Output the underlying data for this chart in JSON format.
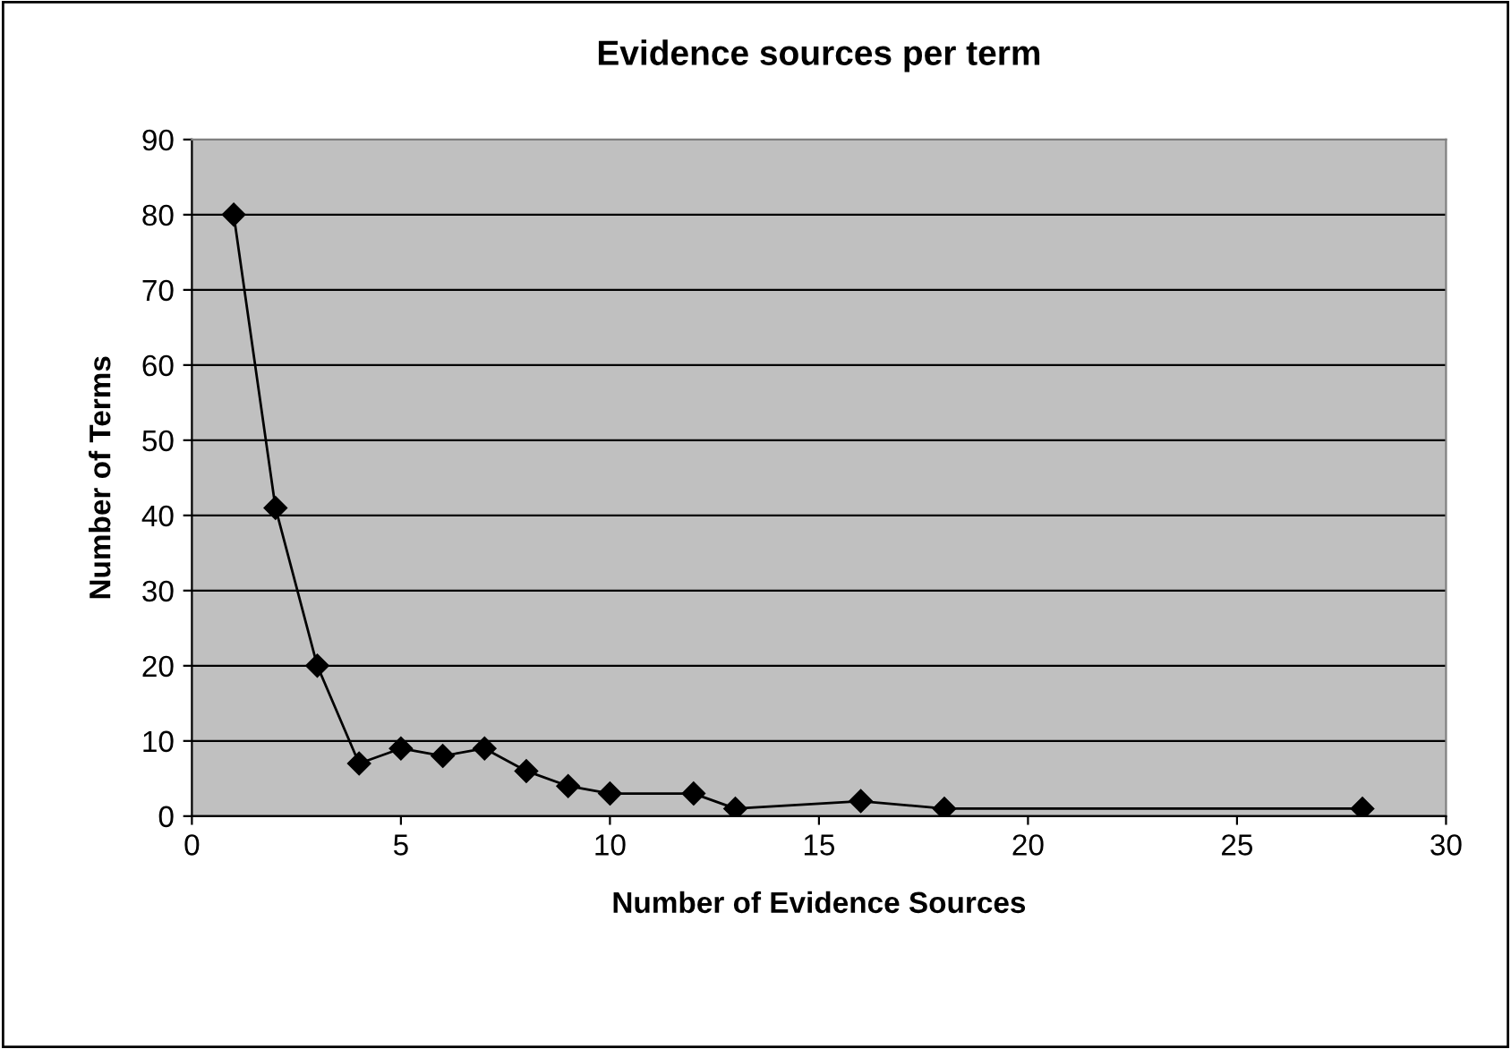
{
  "chart_data": {
    "type": "line",
    "title": "Evidence sources per term",
    "xlabel": "Number of Evidence Sources",
    "ylabel": "Number of Terms",
    "x": [
      1,
      2,
      3,
      4,
      5,
      6,
      7,
      8,
      9,
      10,
      12,
      13,
      16,
      18,
      28
    ],
    "series": [
      {
        "color": "#000000",
        "values": [
          80,
          41,
          20,
          7,
          9,
          8,
          9,
          6,
          4,
          3,
          3,
          1,
          2,
          1,
          1
        ]
      }
    ],
    "xlim": [
      0,
      30
    ],
    "xticks": [
      0,
      5,
      10,
      15,
      20,
      25,
      30
    ],
    "ylim": [
      0,
      90
    ],
    "yticks": [
      0,
      10,
      20,
      30,
      40,
      50,
      60,
      70,
      80,
      90
    ],
    "grid": "y",
    "legend": false,
    "marker": "diamond",
    "line_style": "solid"
  }
}
